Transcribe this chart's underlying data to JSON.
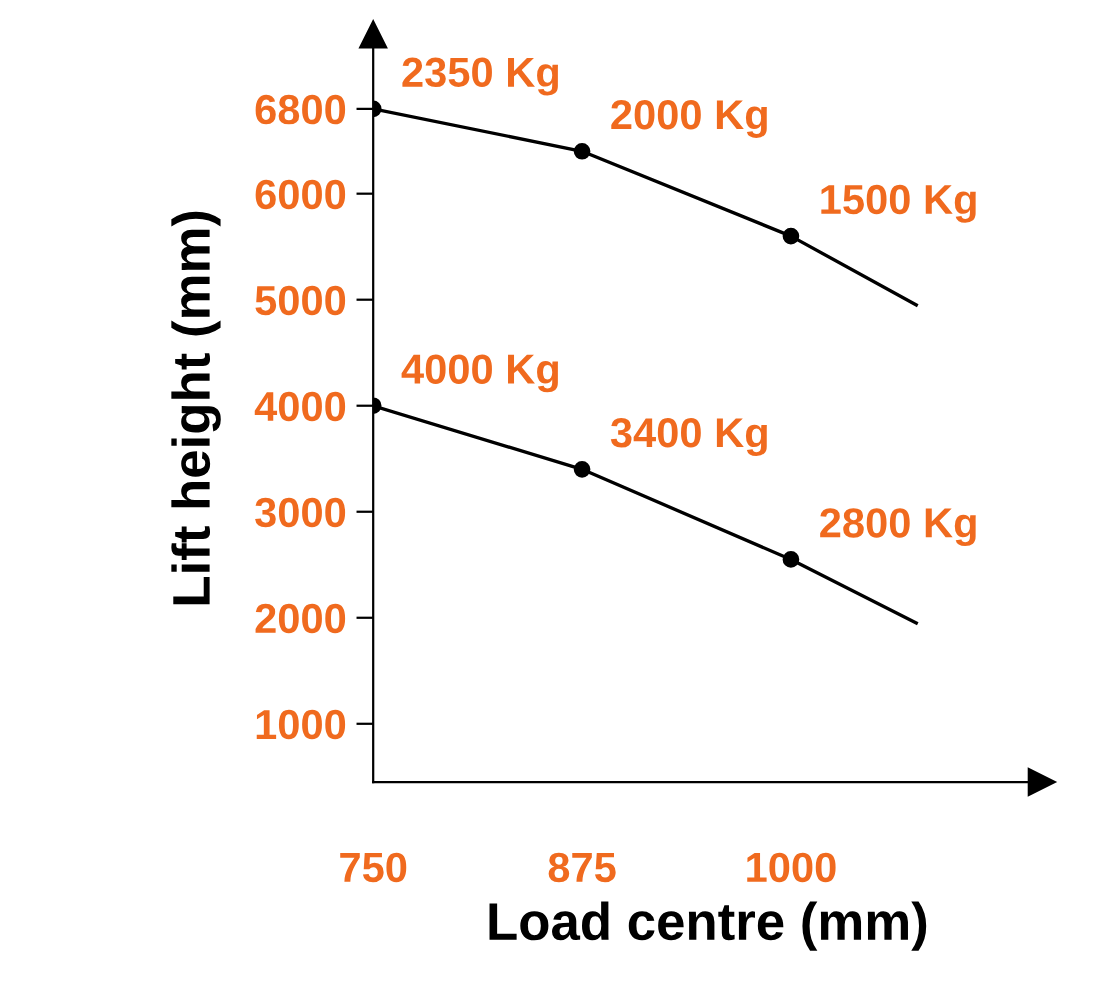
{
  "chart_data": {
    "type": "line",
    "xlabel": "Load centre (mm)",
    "ylabel": "Lift height (mm)",
    "xlim": [
      750,
      1150
    ],
    "ylim": [
      450,
      7500
    ],
    "xticks": [
      750,
      875,
      1000
    ],
    "yticks": [
      1000,
      2000,
      3000,
      4000,
      5000,
      6000,
      6800
    ],
    "grid": false,
    "legend": false,
    "marker": "none",
    "line_style": "solid",
    "series": [
      {
        "color": "#000000",
        "x": [
          750,
          875,
          1000,
          1075
        ],
        "values": [
          6800,
          6400,
          5600,
          4950
        ]
      },
      {
        "color": "#000000",
        "x": [
          750,
          875,
          1000,
          1075
        ],
        "values": [
          4000,
          3400,
          2550,
          1950
        ]
      },
      {
        "type": "scatter",
        "color": "#000000",
        "marker": "circle",
        "x": [
          750,
          875,
          1000,
          750,
          875,
          1000
        ],
        "values": [
          6800,
          6400,
          5600,
          4000,
          3400,
          2550
        ]
      }
    ],
    "annotations": [
      {
        "text": "2350 Kg",
        "x": 750,
        "y": 6800
      },
      {
        "text": "2000 Kg",
        "x": 875,
        "y": 6400
      },
      {
        "text": "1500 Kg",
        "x": 1000,
        "y": 5600
      },
      {
        "text": "4000 Kg",
        "x": 750,
        "y": 4000
      },
      {
        "text": "3400 Kg",
        "x": 875,
        "y": 3400
      },
      {
        "text": "2800 Kg",
        "x": 1000,
        "y": 2550
      }
    ]
  }
}
